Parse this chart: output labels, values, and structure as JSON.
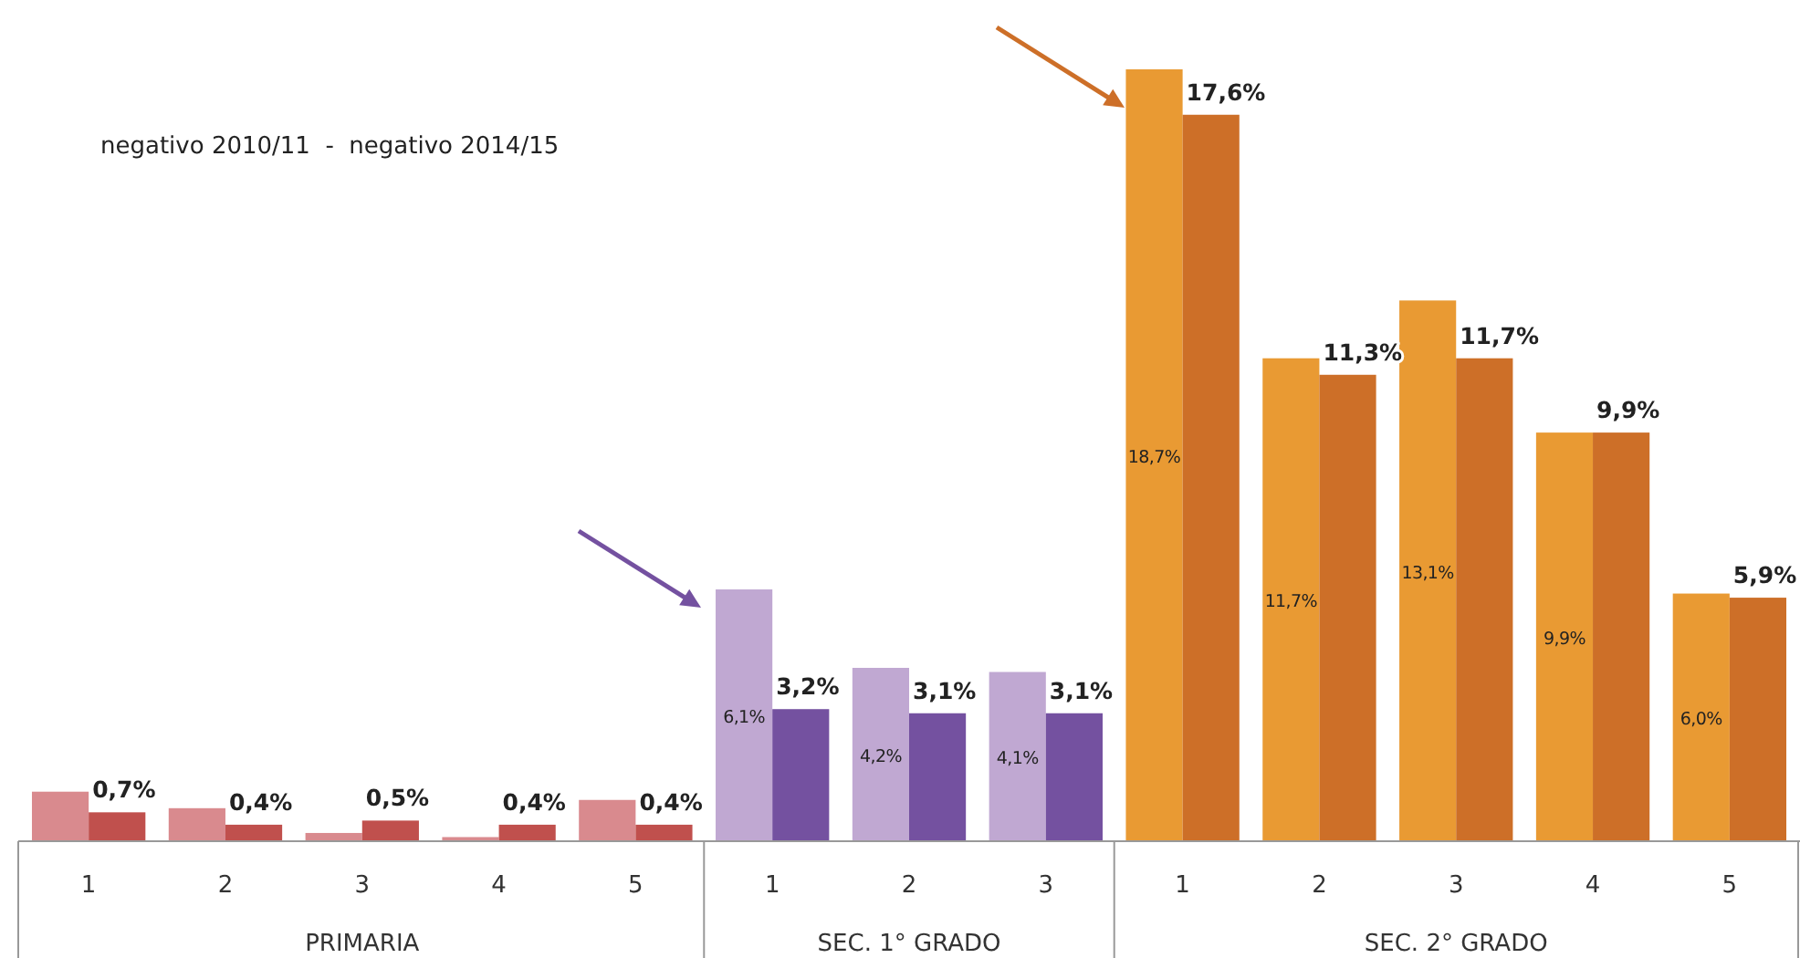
{
  "chart_data": {
    "type": "bar",
    "title": "negativo 2010/11  -  negativo 2014/15",
    "categories": [
      "1",
      "2",
      "3",
      "4",
      "5",
      "1",
      "2",
      "3",
      "1",
      "2",
      "3",
      "4",
      "5"
    ],
    "series": [
      {
        "colors": [
          "#d98a8e",
          "#d98a8e",
          "#d98a8e",
          "#d98a8e",
          "#d98a8e",
          "#c0a8d2",
          "#c0a8d2",
          "#c0a8d2",
          "#e99a33",
          "#e99a33",
          "#e99a33",
          "#e99a33",
          "#e99a33"
        ],
        "values": [
          1.2,
          0.8,
          0.2,
          0.1,
          1.0,
          6.1,
          4.2,
          4.1,
          18.7,
          11.7,
          13.1,
          9.9,
          6.0
        ],
        "value_labels": [
          null,
          null,
          null,
          null,
          null,
          "6,1%",
          "4,2%",
          "4,1%",
          "18,7%",
          "11,7%",
          "13,1%",
          "9,9%",
          "6,0%"
        ]
      },
      {
        "colors": [
          "#c0504d",
          "#c0504d",
          "#c0504d",
          "#c0504d",
          "#c0504d",
          "#7451a0",
          "#7451a0",
          "#7451a0",
          "#cd6f28",
          "#cd6f28",
          "#cd6f28",
          "#cd6f28",
          "#cd6f28"
        ],
        "values": [
          0.7,
          0.4,
          0.5,
          0.4,
          0.4,
          3.2,
          3.1,
          3.1,
          17.6,
          11.3,
          11.7,
          9.9,
          5.9
        ],
        "value_labels": [
          "0,7%",
          "0,4%",
          "0,5%",
          "0,4%",
          "0,4%",
          "3,2%",
          "3,1%",
          "3,1%",
          "17,6%",
          "11,3%",
          "11,7%",
          "9,9%",
          "5,9%"
        ]
      }
    ],
    "annotations": [
      "PRIMARIA",
      "SEC. 1° GRADO",
      "SEC. 2° GRADO"
    ]
  }
}
